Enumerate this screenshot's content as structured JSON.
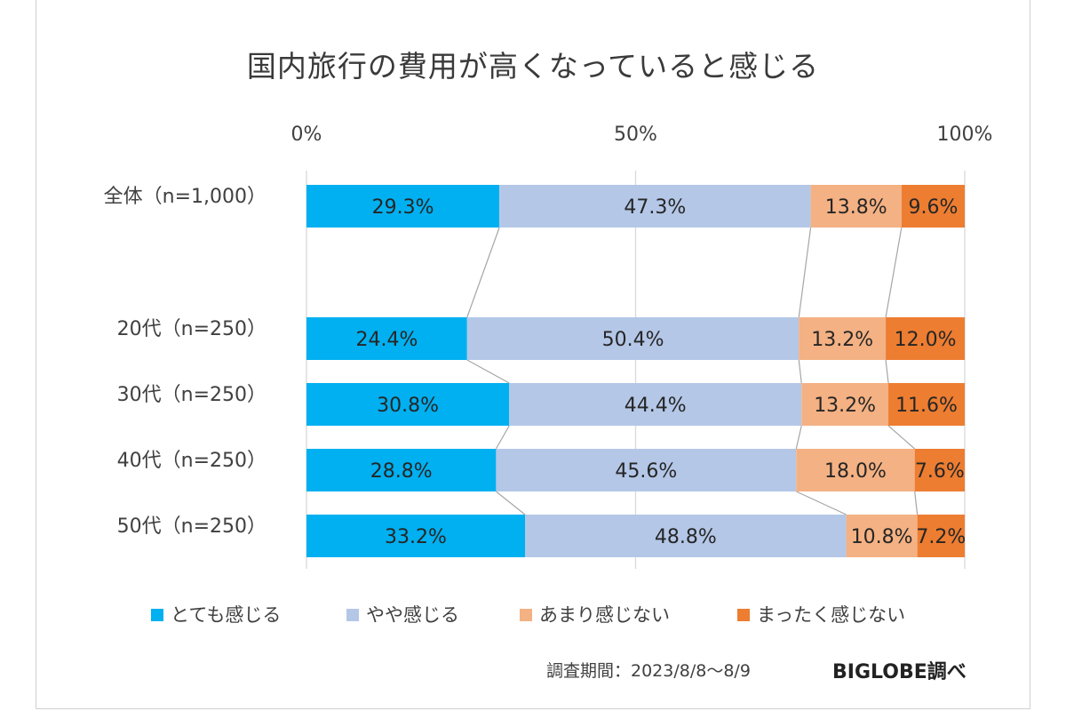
{
  "chart_data": {
    "type": "bar",
    "stacked": true,
    "orientation": "horizontal",
    "title": "国内旅行の費用が高くなっていると感じる",
    "xlim": [
      0,
      100
    ],
    "x_tick_labels": [
      "0%",
      "50%",
      "100%"
    ],
    "x_tick_values": [
      0,
      50,
      100
    ],
    "categories": [
      "全体（n=1,000）",
      "20代（n=250）",
      "30代（n=250）",
      "40代（n=250）",
      "50代（n=250）"
    ],
    "series": [
      {
        "name": "とても感じる",
        "color": "#00b0f0",
        "values": [
          29.3,
          24.4,
          30.8,
          28.8,
          33.2
        ]
      },
      {
        "name": "やや感じる",
        "color": "#b4c7e7",
        "values": [
          47.3,
          50.4,
          44.4,
          45.6,
          48.8
        ]
      },
      {
        "name": "あまり感じない",
        "color": "#f4b183",
        "values": [
          13.8,
          13.2,
          13.2,
          18.0,
          10.8
        ]
      },
      {
        "name": "まったく感じない",
        "color": "#ed7d31",
        "values": [
          9.6,
          12.0,
          11.6,
          7.6,
          7.2
        ]
      }
    ],
    "data_labels": [
      [
        "29.3%",
        "47.3%",
        "13.8%",
        "9.6%"
      ],
      [
        "24.4%",
        "50.4%",
        "13.2%",
        "12.0%"
      ],
      [
        "30.8%",
        "44.4%",
        "13.2%",
        "11.6%"
      ],
      [
        "28.8%",
        "45.6%",
        "18.0%",
        "7.6%"
      ],
      [
        "33.2%",
        "48.8%",
        "10.8%",
        "7.2%"
      ]
    ],
    "series_lines": true,
    "grid": true,
    "legend_position": "bottom"
  },
  "footer": {
    "period": "調査期間：2023/8/8〜8/9",
    "brand": "BIGLOBE調べ"
  }
}
